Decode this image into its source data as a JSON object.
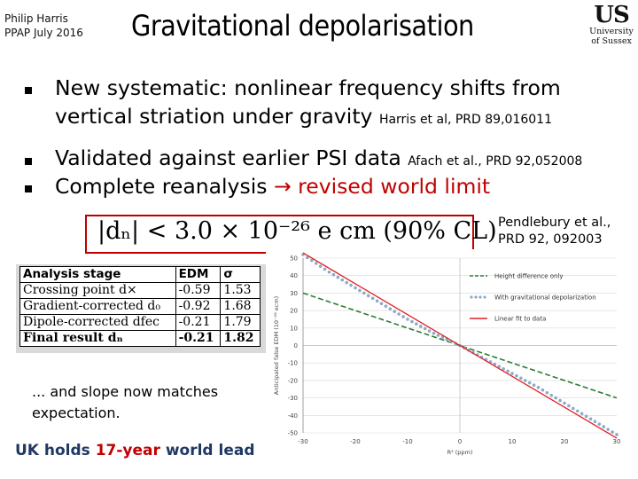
{
  "header": {
    "author": "Philip Harris",
    "event": "PPAP July 2016",
    "title": "Gravitational depolarisation",
    "logo_mark": "US",
    "logo_line1": "University",
    "logo_line2": "of Sussex"
  },
  "bullets": [
    {
      "line1": "New systematic: nonlinear frequency shifts from",
      "line2_main": "vertical striation under gravity ",
      "line2_ref": "Harris et al, PRD 89,016011"
    },
    {
      "main": "Validated against earlier PSI data ",
      "ref": "Afach et al., PRD 92,052008"
    },
    {
      "main": "Complete reanalysis ",
      "arrow": "→",
      "highlight": " revised world limit"
    }
  ],
  "equation": "|dₙ| < 3.0 × 10⁻²⁶ e cm (90% CL)",
  "reference": {
    "line1": "Pendlebury et al.,",
    "line2": "PRD 92, 092003"
  },
  "table": {
    "headers": [
      "Analysis stage",
      "EDM",
      "σ"
    ],
    "rows": [
      {
        "stage": "Crossing point d×",
        "edm": "-0.59",
        "sigma": "1.53"
      },
      {
        "stage": "Gradient-corrected d₀",
        "edm": "-0.92",
        "sigma": "1.68"
      },
      {
        "stage": "Dipole-corrected dfec",
        "edm": "-0.21",
        "sigma": "1.79"
      },
      {
        "stage": "Final result dₙ",
        "edm": "-0.21",
        "sigma": "1.82"
      }
    ]
  },
  "slope_note": {
    "line1": "... and slope now matches",
    "line2": "expectation."
  },
  "uk": {
    "pre": "UK holds ",
    "highlight": "17-year",
    "post": " world lead"
  },
  "colors": {
    "accent_red": "#c00000",
    "uk_blue": "#1f3864",
    "series_green": "#2e7d32",
    "series_blue": "#8ea9c8",
    "series_red": "#e02020"
  },
  "chart_data": {
    "type": "line",
    "xlabel": "R² (ppm)",
    "ylabel": "Anticipated false EDM (10⁻²⁸ ecm)",
    "xlim": [
      -30,
      30
    ],
    "ylim": [
      -50,
      50
    ],
    "xticks": [
      "-30",
      "-20",
      "-10",
      "0",
      "10",
      "20",
      "30"
    ],
    "yticks": [
      "50",
      "40",
      "30",
      "20",
      "10",
      "0",
      "-10",
      "-20",
      "-30",
      "-40",
      "-50"
    ],
    "grid": true,
    "legend_position": "top-right",
    "series": [
      {
        "name": "Height difference only",
        "style": "dashed",
        "x": [
          -30,
          30
        ],
        "y": [
          30,
          -30
        ]
      },
      {
        "name": "With gravitational depolarization",
        "style": "dots",
        "x": [
          -30,
          -25,
          -20,
          -15,
          -10,
          -5,
          0,
          5,
          10,
          15,
          20,
          25,
          30
        ],
        "y": [
          52,
          42,
          33,
          24,
          15,
          7,
          0,
          -8,
          -16,
          -24,
          -33,
          -42,
          -51
        ]
      },
      {
        "name": "Linear fit to data",
        "style": "solid",
        "x": [
          -30,
          30
        ],
        "y": [
          53,
          -53
        ]
      }
    ]
  }
}
